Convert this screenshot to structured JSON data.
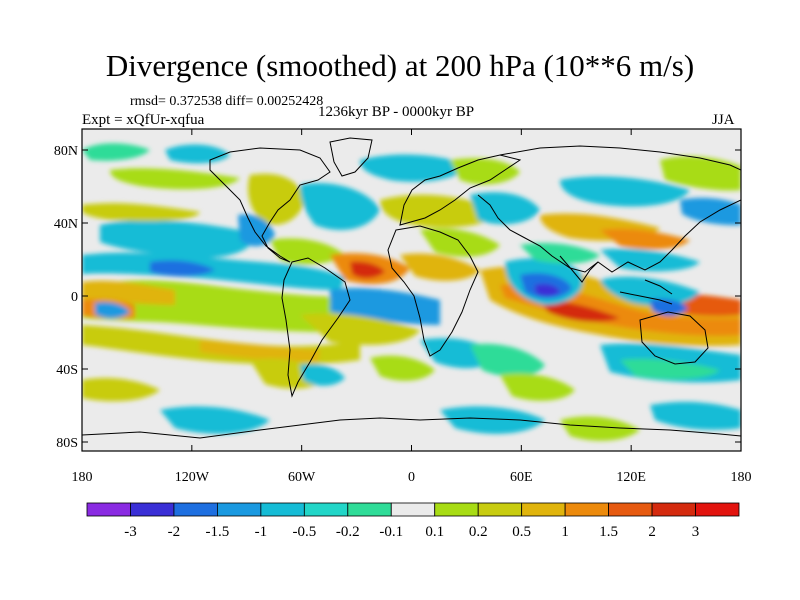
{
  "title": "Divergence (smoothed) at 200 hPa (10**6 m/s)",
  "stats_text": "rmsd= 0.372538 diff= 0.00252428",
  "experiment_text": "Expt = xQfUr-xqfua",
  "period_text": "1236kyr BP - 0000kyr BP",
  "season_text": "JJA",
  "lat_ticks": [
    "80N",
    "40N",
    "0",
    "40S",
    "80S"
  ],
  "lon_ticks": [
    "180",
    "120W",
    "60W",
    "0",
    "60E",
    "120E",
    "180"
  ],
  "colorbar": {
    "labels": [
      "-3",
      "-2",
      "-1.5",
      "-1",
      "-0.5",
      "-0.2",
      "-0.1",
      "0.1",
      "0.2",
      "0.5",
      "1",
      "1.5",
      "2",
      "3"
    ],
    "colors": [
      "#8a2be2",
      "#3a2fd6",
      "#1e6fe0",
      "#1a99e0",
      "#15bcd6",
      "#22d6c8",
      "#2fdc98",
      "#ebebeb",
      "#a8dc14",
      "#c8cc10",
      "#e0b40c",
      "#ec8a0c",
      "#e65a10",
      "#d42a0e",
      "#e2130e"
    ]
  },
  "colors": {
    "background": "#ebebeb",
    "coast": "#000000"
  }
}
